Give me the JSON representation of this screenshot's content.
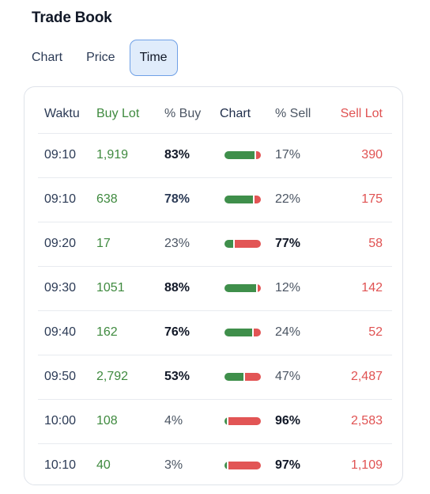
{
  "header": {
    "title": "Trade Book"
  },
  "tabs": [
    {
      "label": "Chart",
      "active": false
    },
    {
      "label": "Price",
      "active": false
    },
    {
      "label": "Time",
      "active": true
    }
  ],
  "table": {
    "columns": [
      "Waktu",
      "Buy Lot",
      "% Buy",
      "Chart",
      "% Sell",
      "Sell Lot"
    ],
    "rows": [
      {
        "time": "09:10",
        "buy_lot": "1,919",
        "pct_buy": "83%",
        "pct_sell": "17%",
        "sell_lot": "390",
        "buy_frac": 0.83
      },
      {
        "time": "09:10",
        "buy_lot": "638",
        "pct_buy": "78%",
        "pct_sell": "22%",
        "sell_lot": "175",
        "buy_frac": 0.78
      },
      {
        "time": "09:20",
        "buy_lot": "17",
        "pct_buy": "23%",
        "pct_sell": "77%",
        "sell_lot": "58",
        "buy_frac": 0.23
      },
      {
        "time": "09:30",
        "buy_lot": "1051",
        "pct_buy": "88%",
        "pct_sell": "12%",
        "sell_lot": "142",
        "buy_frac": 0.88
      },
      {
        "time": "09:40",
        "buy_lot": "162",
        "pct_buy": "76%",
        "pct_sell": "24%",
        "sell_lot": "52",
        "buy_frac": 0.76
      },
      {
        "time": "09:50",
        "buy_lot": "2,792",
        "pct_buy": "53%",
        "pct_sell": "47%",
        "sell_lot": "2,487",
        "buy_frac": 0.53
      },
      {
        "time": "10:00",
        "buy_lot": "108",
        "pct_buy": "4%",
        "pct_sell": "96%",
        "sell_lot": "2,583",
        "buy_frac": 0.04
      },
      {
        "time": "10:10",
        "buy_lot": "40",
        "pct_buy": "3%",
        "pct_sell": "97%",
        "sell_lot": "1,109",
        "buy_frac": 0.03
      }
    ]
  },
  "colors": {
    "buy": "#3f8f4b",
    "sell": "#e25555",
    "accent": "#6fa0e6"
  }
}
